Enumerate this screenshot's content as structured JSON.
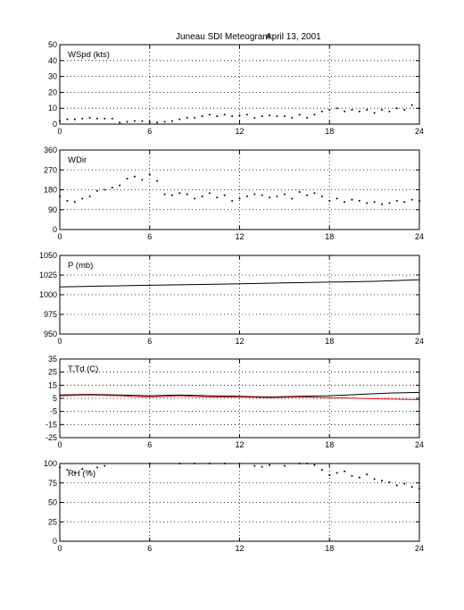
{
  "title": {
    "station": "Juneau SDI Meteogram:",
    "date": "April 13, 2001"
  },
  "colors": {
    "axes": "#000000",
    "grid": "#000000",
    "series_primary": "#000000",
    "series_secondary": "#ff0000",
    "background": "#ffffff"
  },
  "chart_data": [
    {
      "type": "scatter",
      "label": "WSpd (kts)",
      "xlim": [
        0,
        24
      ],
      "ylim": [
        0,
        50
      ],
      "xticks": [
        0,
        6,
        12,
        18,
        24
      ],
      "yticks": [
        0,
        10,
        20,
        30,
        40,
        50
      ],
      "grid": true,
      "series": [
        {
          "color": "#000000",
          "x": [
            0,
            0.5,
            1,
            1.5,
            2,
            2.5,
            3,
            3.5,
            4,
            4.5,
            5,
            5.5,
            6,
            6.5,
            7,
            7.5,
            8,
            8.5,
            9,
            9.5,
            10,
            10.5,
            11,
            11.5,
            12,
            12.5,
            13,
            13.5,
            14,
            14.5,
            15,
            15.5,
            16,
            16.5,
            17,
            17.5,
            18,
            18.5,
            19,
            19.5,
            20,
            20.5,
            21,
            21.5,
            22,
            22.5,
            23,
            23.5,
            24
          ],
          "y": [
            2,
            3,
            3,
            3.5,
            4,
            3.5,
            3.5,
            3.5,
            1,
            1.5,
            2,
            2,
            1.5,
            1,
            1.5,
            2,
            3,
            4,
            4,
            5,
            6,
            5,
            6,
            5,
            5.5,
            6,
            4,
            5,
            5.5,
            5,
            5,
            4,
            6,
            4,
            6,
            8,
            9,
            10,
            8,
            9,
            8,
            9,
            7,
            9,
            8,
            10,
            9,
            12,
            10
          ]
        }
      ]
    },
    {
      "type": "scatter",
      "label": "WDir",
      "xlim": [
        0,
        24
      ],
      "ylim": [
        0,
        360
      ],
      "xticks": [
        0,
        6,
        12,
        18,
        24
      ],
      "yticks": [
        0,
        90,
        180,
        270,
        360
      ],
      "grid": true,
      "series": [
        {
          "color": "#000000",
          "x": [
            0,
            0.5,
            1,
            1.5,
            2,
            2.5,
            3,
            3.5,
            4,
            4.5,
            5,
            5.5,
            6,
            6.5,
            7,
            7.5,
            8,
            8.5,
            9,
            9.5,
            10,
            10.5,
            11,
            11.5,
            12,
            12.5,
            13,
            13.5,
            14,
            14.5,
            15,
            15.5,
            16,
            16.5,
            17,
            17.5,
            18,
            18.5,
            19,
            19.5,
            20,
            20.5,
            21,
            21.5,
            22,
            22.5,
            23,
            23.5,
            24
          ],
          "y": [
            150,
            130,
            125,
            140,
            150,
            175,
            180,
            190,
            200,
            230,
            240,
            225,
            250,
            220,
            160,
            155,
            165,
            160,
            140,
            150,
            165,
            145,
            155,
            130,
            140,
            150,
            160,
            155,
            145,
            150,
            160,
            140,
            170,
            155,
            165,
            150,
            130,
            140,
            125,
            135,
            130,
            120,
            125,
            115,
            120,
            130,
            125,
            135,
            130
          ]
        }
      ]
    },
    {
      "type": "line",
      "label": "P (mb)",
      "xlim": [
        0,
        24
      ],
      "ylim": [
        950,
        1050
      ],
      "xticks": [
        0,
        6,
        12,
        18,
        24
      ],
      "yticks": [
        950,
        975,
        1000,
        1025,
        1050
      ],
      "grid": true,
      "series": [
        {
          "color": "#000000",
          "x": [
            0,
            3,
            6,
            9,
            12,
            15,
            18,
            21,
            24
          ],
          "y": [
            1010,
            1011,
            1012,
            1013,
            1014,
            1015,
            1016,
            1017,
            1019
          ]
        }
      ]
    },
    {
      "type": "line",
      "label": "T,Td (C)",
      "xlim": [
        0,
        24
      ],
      "ylim": [
        -25,
        35
      ],
      "xticks": [
        0,
        6,
        12,
        18,
        24
      ],
      "yticks": [
        -25,
        -15,
        -5,
        5,
        15,
        25,
        35
      ],
      "grid": true,
      "series": [
        {
          "color": "#000000",
          "x": [
            0,
            2,
            4,
            6,
            8,
            10,
            12,
            14,
            16,
            18,
            20,
            22,
            24
          ],
          "y": [
            7.5,
            8,
            7.5,
            7,
            7.5,
            7,
            6.5,
            6,
            6.5,
            7,
            8,
            9,
            9.5
          ]
        },
        {
          "color": "#ff0000",
          "x": [
            0,
            2,
            4,
            6,
            8,
            10,
            12,
            14,
            16,
            18,
            20,
            22,
            24
          ],
          "y": [
            7,
            7.5,
            7,
            6,
            7,
            6,
            6,
            5.5,
            6,
            5.5,
            5,
            4.5,
            4
          ]
        }
      ]
    },
    {
      "type": "scatter",
      "label": "RH (%)",
      "xlim": [
        0,
        24
      ],
      "ylim": [
        0,
        100
      ],
      "xticks": [
        0,
        6,
        12,
        18,
        24
      ],
      "yticks": [
        0,
        25,
        50,
        75,
        100
      ],
      "grid": true,
      "series": [
        {
          "color": "#000000",
          "x": [
            0,
            0.5,
            1,
            1.5,
            2,
            2.5,
            3,
            6,
            8,
            9,
            10,
            11,
            12,
            13,
            13.5,
            14,
            15,
            16,
            16.5,
            17,
            17.5,
            18,
            18.5,
            19,
            19.5,
            20,
            20.5,
            21,
            21.5,
            22,
            22.5,
            23,
            23.5,
            24
          ],
          "y": [
            95,
            92,
            88,
            93,
            90,
            95,
            97,
            100,
            100,
            100,
            100,
            100,
            100,
            97,
            96,
            98,
            97,
            100,
            100,
            98,
            92,
            85,
            88,
            90,
            84,
            82,
            86,
            80,
            78,
            76,
            72,
            74,
            70,
            68
          ]
        }
      ]
    }
  ]
}
